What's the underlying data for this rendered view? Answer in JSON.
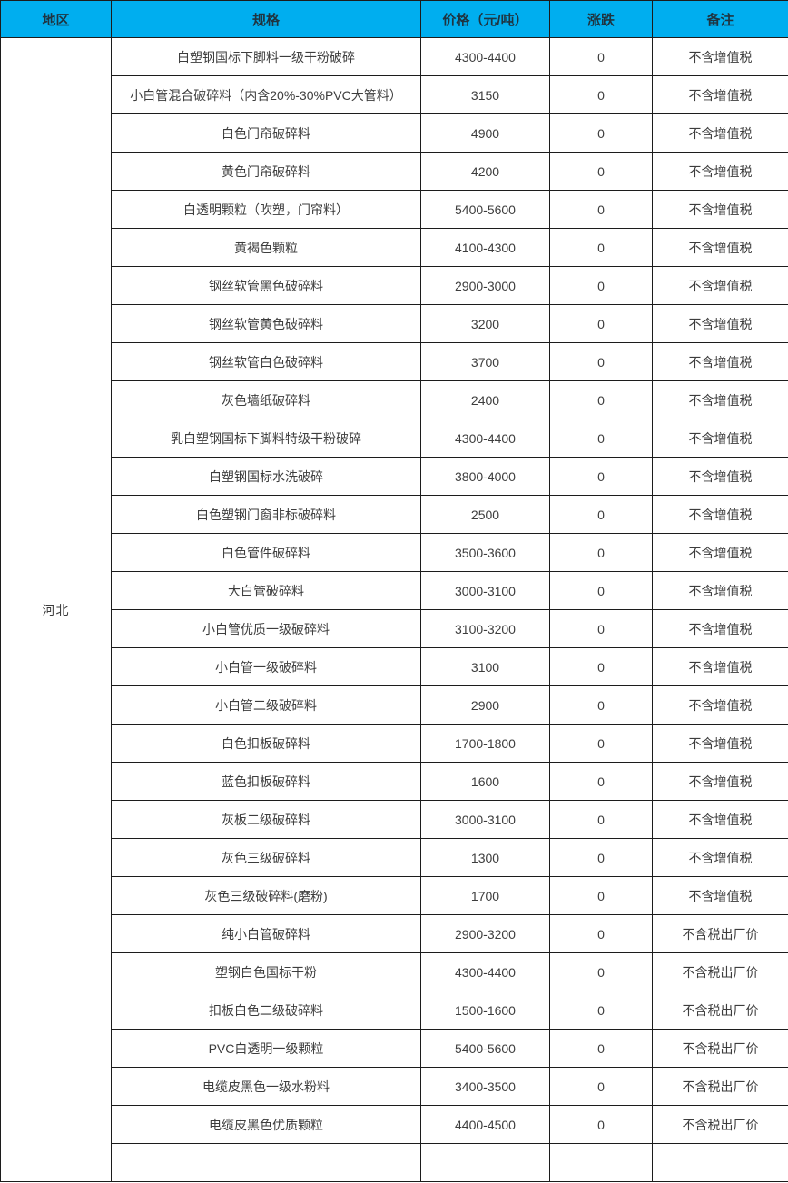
{
  "colors": {
    "header_bg": "#00AEEF",
    "border": "#1c1c1c",
    "text": "#3d3d3d"
  },
  "table": {
    "region": "河北",
    "headers": {
      "region": "地区",
      "spec": "规格",
      "price": "价格（元/吨）",
      "change": "涨跌",
      "note": "备注"
    },
    "rows": [
      {
        "spec": "白塑钢国标下脚料一级干粉破碎",
        "price": "4300-4400",
        "change": "0",
        "note": "不含增值税"
      },
      {
        "spec": "小白管混合破碎料（内含20%-30%PVC大管料）",
        "price": "3150",
        "change": "0",
        "note": "不含增值税"
      },
      {
        "spec": "白色门帘破碎料",
        "price": "4900",
        "change": "0",
        "note": "不含增值税"
      },
      {
        "spec": "黄色门帘破碎料",
        "price": "4200",
        "change": "0",
        "note": "不含增值税"
      },
      {
        "spec": "白透明颗粒（吹塑，门帘料）",
        "price": "5400-5600",
        "change": "0",
        "note": "不含增值税"
      },
      {
        "spec": "黄褐色颗粒",
        "price": "4100-4300",
        "change": "0",
        "note": "不含增值税"
      },
      {
        "spec": "钢丝软管黑色破碎料",
        "price": "2900-3000",
        "change": "0",
        "note": "不含增值税"
      },
      {
        "spec": "钢丝软管黄色破碎料",
        "price": "3200",
        "change": "0",
        "note": "不含增值税"
      },
      {
        "spec": "钢丝软管白色破碎料",
        "price": "3700",
        "change": "0",
        "note": "不含增值税"
      },
      {
        "spec": "灰色墙纸破碎料",
        "price": "2400",
        "change": "0",
        "note": "不含增值税"
      },
      {
        "spec": "乳白塑钢国标下脚料特级干粉破碎",
        "price": "4300-4400",
        "change": "0",
        "note": "不含增值税"
      },
      {
        "spec": "白塑钢国标水洗破碎",
        "price": "3800-4000",
        "change": "0",
        "note": "不含增值税"
      },
      {
        "spec": "白色塑钢门窗非标破碎料",
        "price": "2500",
        "change": "0",
        "note": "不含增值税"
      },
      {
        "spec": "白色管件破碎料",
        "price": "3500-3600",
        "change": "0",
        "note": "不含增值税"
      },
      {
        "spec": "大白管破碎料",
        "price": "3000-3100",
        "change": "0",
        "note": "不含增值税"
      },
      {
        "spec": "小白管优质一级破碎料",
        "price": "3100-3200",
        "change": "0",
        "note": "不含增值税"
      },
      {
        "spec": "小白管一级破碎料",
        "price": "3100",
        "change": "0",
        "note": "不含增值税"
      },
      {
        "spec": "小白管二级破碎料",
        "price": "2900",
        "change": "0",
        "note": "不含增值税"
      },
      {
        "spec": "白色扣板破碎料",
        "price": "1700-1800",
        "change": "0",
        "note": "不含增值税"
      },
      {
        "spec": "蓝色扣板破碎料",
        "price": "1600",
        "change": "0",
        "note": "不含增值税"
      },
      {
        "spec": "灰板二级破碎料",
        "price": "3000-3100",
        "change": "0",
        "note": "不含增值税"
      },
      {
        "spec": "灰色三级破碎料",
        "price": "1300",
        "change": "0",
        "note": "不含增值税"
      },
      {
        "spec": "灰色三级破碎料(磨粉)",
        "price": "1700",
        "change": "0",
        "note": "不含增值税"
      },
      {
        "spec": "纯小白管破碎料",
        "price": "2900-3200",
        "change": "0",
        "note": "不含税出厂价"
      },
      {
        "spec": "塑钢白色国标干粉",
        "price": "4300-4400",
        "change": "0",
        "note": "不含税出厂价"
      },
      {
        "spec": "扣板白色二级破碎料",
        "price": "1500-1600",
        "change": "0",
        "note": "不含税出厂价"
      },
      {
        "spec": "PVC白透明一级颗粒",
        "price": "5400-5600",
        "change": "0",
        "note": "不含税出厂价"
      },
      {
        "spec": "电缆皮黑色一级水粉料",
        "price": "3400-3500",
        "change": "0",
        "note": "不含税出厂价"
      },
      {
        "spec": "电缆皮黑色优质颗粒",
        "price": "4400-4500",
        "change": "0",
        "note": "不含税出厂价"
      },
      {
        "spec": "",
        "price": "",
        "change": "",
        "note": ""
      }
    ]
  }
}
